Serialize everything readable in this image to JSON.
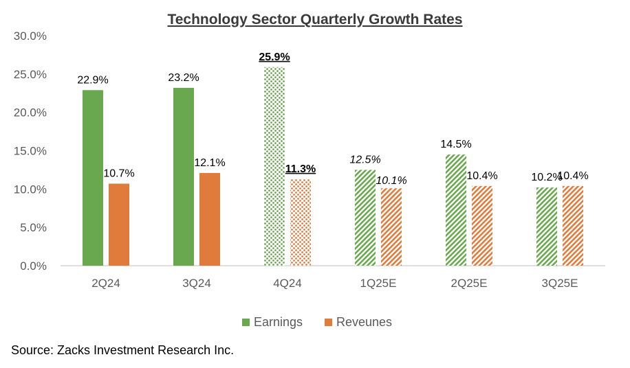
{
  "chart_data": {
    "type": "bar",
    "title": "Technology Sector Quarterly Growth Rates",
    "categories": [
      "2Q24",
      "3Q24",
      "4Q24",
      "1Q25E",
      "2Q25E",
      "3Q25E"
    ],
    "series": [
      {
        "name": "Earnings",
        "values": [
          22.9,
          23.2,
          25.9,
          12.5,
          14.5,
          10.2
        ],
        "labels": [
          "22.9%",
          "23.2%",
          "25.9%",
          "12.5%",
          "14.5%",
          "10.2%"
        ]
      },
      {
        "name": "Reveunes",
        "values": [
          10.7,
          12.1,
          11.3,
          10.1,
          10.4,
          10.4
        ],
        "labels": [
          "10.7%",
          "12.1%",
          "11.3%",
          "10.1%",
          "10.4%",
          "10.4%"
        ]
      }
    ],
    "yticks": [
      "0.0%",
      "5.0%",
      "10.0%",
      "15.0%",
      "20.0%",
      "25.0%",
      "30.0%"
    ],
    "ylim": [
      0,
      30
    ],
    "grid": false,
    "legend": "bottom",
    "fills": [
      "solid",
      "solid",
      "dotted",
      "hatched",
      "hatched",
      "hatched"
    ],
    "colors": {
      "earnings": "#6aa84f",
      "revenues": "#e07b3c"
    }
  },
  "source": "Source: Zacks Investment Research Inc."
}
